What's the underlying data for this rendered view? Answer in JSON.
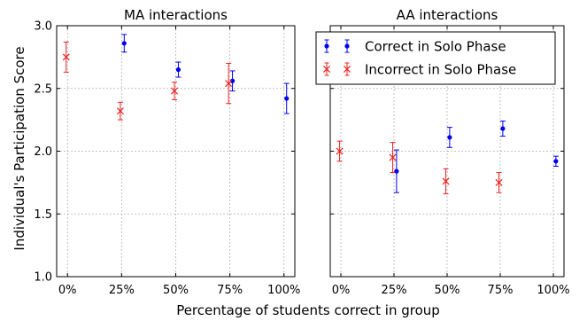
{
  "chart_data": {
    "type": "scatter",
    "ylabel": "Individual's Participation Score",
    "xlabel": "Percentage of students correct in group",
    "ylim": [
      1.0,
      3.0
    ],
    "yticks": [
      "1.0",
      "1.5",
      "2.0",
      "2.5",
      "3.0"
    ],
    "xlim": [
      -0.05,
      1.05
    ],
    "xticks": [
      "0%",
      "25%",
      "50%",
      "75%",
      "100%"
    ],
    "xtick_values": [
      0,
      0.25,
      0.5,
      0.75,
      1.0
    ],
    "grid": true,
    "legend": {
      "placement": "top-right",
      "panel": 1,
      "entries": [
        "Correct in Solo Phase",
        "Incorrect in Solo Phase"
      ]
    },
    "colors": {
      "correct": "#0000ee",
      "incorrect": "#ee2222",
      "grid": "#b0b0b0"
    },
    "panels": [
      {
        "title": "MA interactions",
        "series": [
          {
            "name": "Correct in Solo Phase",
            "marker": "dot",
            "points": [
              {
                "x": 0.25,
                "y": 2.86,
                "err": 0.07
              },
              {
                "x": 0.5,
                "y": 2.65,
                "err": 0.06
              },
              {
                "x": 0.75,
                "y": 2.56,
                "err": 0.08
              },
              {
                "x": 1.0,
                "y": 2.42,
                "err": 0.12
              }
            ]
          },
          {
            "name": "Incorrect in Solo Phase",
            "marker": "x",
            "points": [
              {
                "x": 0.0,
                "y": 2.75,
                "err": 0.12
              },
              {
                "x": 0.25,
                "y": 2.32,
                "err": 0.07
              },
              {
                "x": 0.5,
                "y": 2.48,
                "err": 0.07
              },
              {
                "x": 0.75,
                "y": 2.54,
                "err": 0.16
              }
            ]
          }
        ]
      },
      {
        "title": "AA interactions",
        "series": [
          {
            "name": "Correct in Solo Phase",
            "marker": "dot",
            "points": [
              {
                "x": 0.25,
                "y": 1.84,
                "err": 0.17
              },
              {
                "x": 0.5,
                "y": 2.11,
                "err": 0.08
              },
              {
                "x": 0.75,
                "y": 2.18,
                "err": 0.06
              },
              {
                "x": 1.0,
                "y": 1.92,
                "err": 0.04
              }
            ]
          },
          {
            "name": "Incorrect in Solo Phase",
            "marker": "x",
            "points": [
              {
                "x": 0.0,
                "y": 2.0,
                "err": 0.08
              },
              {
                "x": 0.25,
                "y": 1.95,
                "err": 0.12
              },
              {
                "x": 0.5,
                "y": 1.76,
                "err": 0.1
              },
              {
                "x": 0.75,
                "y": 1.75,
                "err": 0.08
              }
            ]
          }
        ]
      }
    ]
  }
}
